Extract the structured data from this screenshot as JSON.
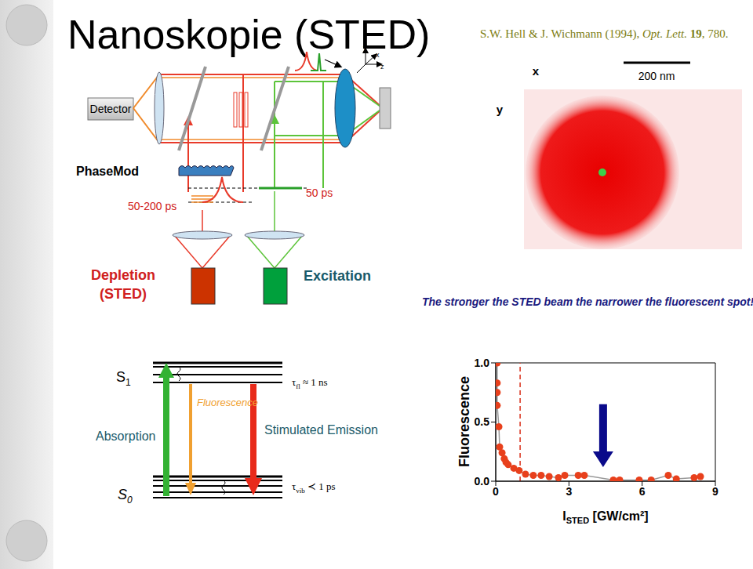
{
  "header": {
    "title": "Nanoskopie (STED)",
    "citation": {
      "authors": "S.W. Hell & J. Wichmann (1994),",
      "journal": "Opt. Lett.",
      "volume": "19",
      "page": "780."
    }
  },
  "setup_diagram": {
    "detector": "Detector",
    "phase_modulator": "PhaseMod",
    "depletion_pulse": "50-200 ps",
    "excitation_pulse": "50 ps",
    "depletion": [
      "Depletion",
      "(STED)"
    ],
    "excitation": "Excitation",
    "axes": [
      "x",
      "y",
      "z"
    ]
  },
  "image": {
    "x_label": "x",
    "y_label": "y",
    "scale_bar": "200 nm",
    "caption": "The stronger the STED beam the narrower the fluorescent spot!"
  },
  "energy_diagram": {
    "upper_state": {
      "symbol": "S",
      "subscript": "1"
    },
    "lower_state": {
      "symbol": "S",
      "subscript": "0"
    },
    "absorption": "Absorption",
    "fluorescence": "Fluorescence",
    "stimulated_emission": "Stimulated Emission",
    "upper_lifetime": {
      "symbol": "τ",
      "subscript": "fl",
      "relation": "≈ 1 ns"
    },
    "lower_lifetime": {
      "symbol": "τ",
      "subscript": "vib",
      "relation": "≺ 1 ps"
    }
  },
  "chart_data": {
    "type": "scatter",
    "y_label": "Fluorescence",
    "x_label": {
      "symbol": "I",
      "subscript": "STED",
      "unit": "[GW/cm²]"
    },
    "x": [
      0.06,
      0.06,
      0.06,
      0.06,
      0.13,
      0.16,
      0.26,
      0.35,
      0.42,
      0.51,
      0.74,
      0.96,
      1.22,
      1.54,
      1.86,
      2.19,
      2.57,
      2.83,
      3.38,
      3.63,
      4.82,
      5.08,
      5.88,
      6.37,
      7.07,
      7.4,
      8.13,
      8.39
    ],
    "values": [
      1.0,
      0.83,
      0.75,
      0.64,
      0.46,
      0.29,
      0.24,
      0.19,
      0.16,
      0.14,
      0.11,
      0.09,
      0.06,
      0.05,
      0.05,
      0.04,
      0.03,
      0.05,
      0.05,
      0.05,
      0.01,
      0.01,
      0.01,
      0.01,
      0.05,
      0.02,
      0.03,
      0.04
    ],
    "color": "#e8401c",
    "marker": "circle",
    "line_style": "solid",
    "xlim": [
      0,
      9
    ],
    "xticks": [
      0,
      3,
      6,
      9
    ],
    "ylim": [
      0,
      1
    ],
    "yticks": [
      {
        "value": 0,
        "label": "0.0"
      },
      {
        "value": 0.5,
        "label": "0.5"
      },
      {
        "value": 1,
        "label": "1.0"
      }
    ],
    "reference_line": {
      "x": 1,
      "color": "#d9301a",
      "line_style": "dashed"
    },
    "arrow": {
      "x": 4.4,
      "y_start": 0.65,
      "y_end": 0.12,
      "color": "#0a0a8a"
    }
  }
}
